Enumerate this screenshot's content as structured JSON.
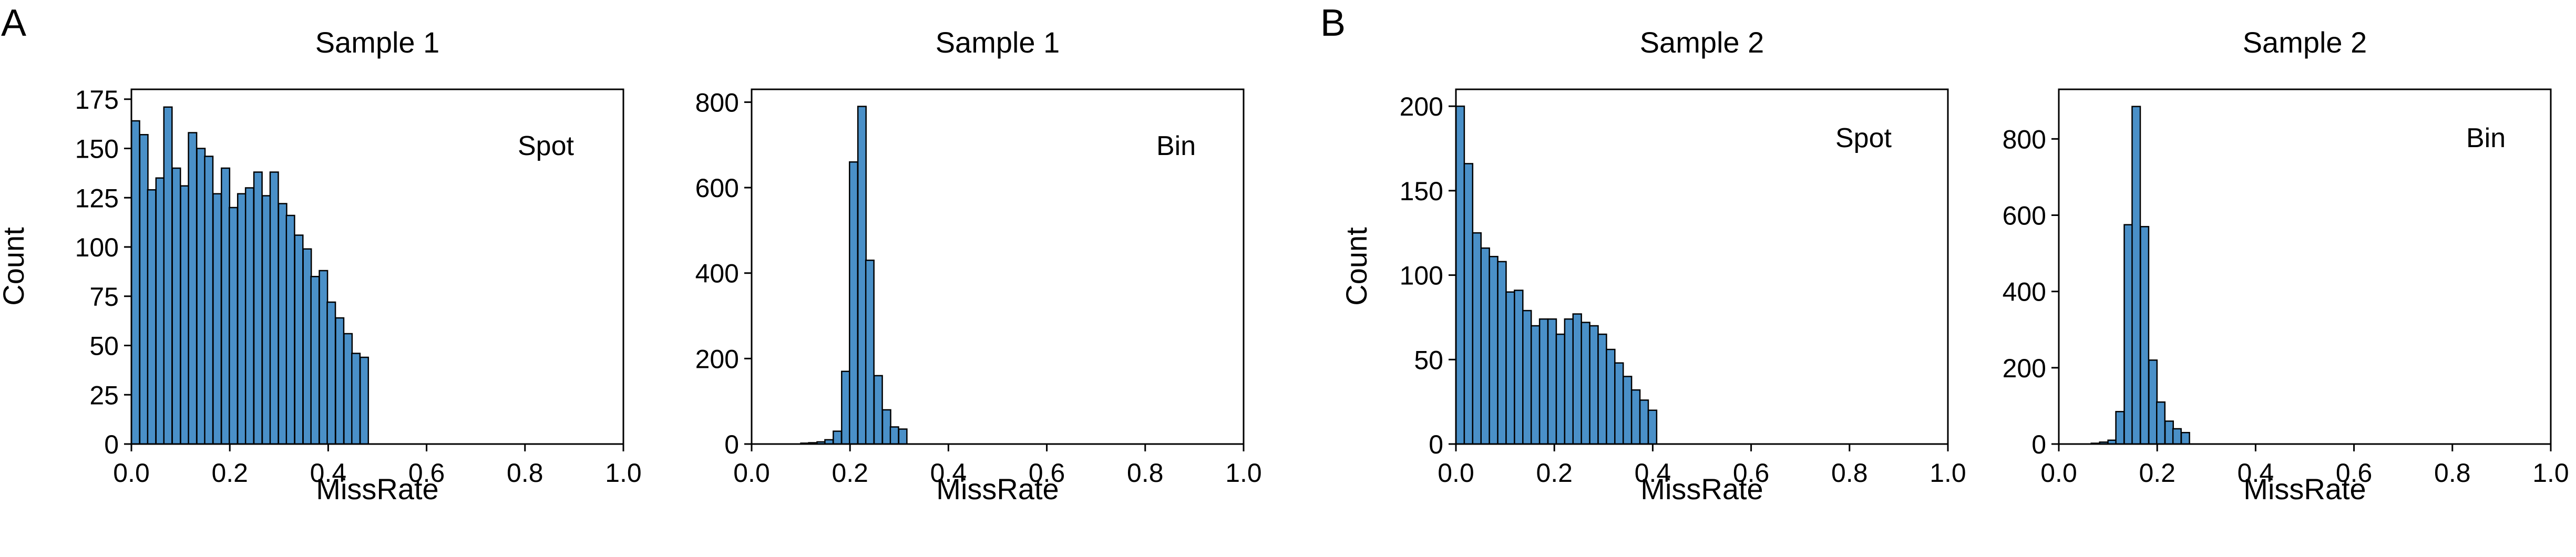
{
  "figure": {
    "panel_letters": [
      "A",
      "B"
    ]
  },
  "chart_data": [
    {
      "type": "bar",
      "panel": "A",
      "title": "Sample 1",
      "annotation": "Spot",
      "xlabel": "MissRate",
      "ylabel": "Count",
      "xlim": [
        0.0,
        1.0
      ],
      "ylim": [
        0,
        180
      ],
      "xticks": [
        "0.0",
        "0.2",
        "0.4",
        "0.6",
        "0.8",
        "1.0"
      ],
      "yticks": [
        "0",
        "25",
        "50",
        "75",
        "100",
        "125",
        "150",
        "175"
      ],
      "bin_width": 0.0166,
      "x": [
        0.0,
        0.017,
        0.033,
        0.05,
        0.066,
        0.083,
        0.1,
        0.116,
        0.133,
        0.149,
        0.166,
        0.183,
        0.199,
        0.216,
        0.232,
        0.249,
        0.266,
        0.282,
        0.299,
        0.315,
        0.332,
        0.349,
        0.365,
        0.382,
        0.398,
        0.415,
        0.432,
        0.448,
        0.465
      ],
      "values": [
        164,
        157,
        129,
        135,
        171,
        140,
        131,
        158,
        150,
        146,
        127,
        140,
        120,
        127,
        130,
        138,
        126,
        138,
        122,
        116,
        106,
        99,
        85,
        88,
        72,
        64,
        56,
        46,
        44
      ]
    },
    {
      "type": "bar",
      "panel": "A",
      "title": "Sample 1",
      "annotation": "Bin",
      "xlabel": "MissRate",
      "ylabel": "",
      "xlim": [
        0.0,
        1.0
      ],
      "ylim": [
        0,
        830
      ],
      "xticks": [
        "0.0",
        "0.2",
        "0.4",
        "0.6",
        "0.8",
        "1.0"
      ],
      "yticks": [
        "0",
        "200",
        "400",
        "600",
        "800"
      ],
      "bin_width": 0.0166,
      "x": [
        0.066,
        0.083,
        0.1,
        0.116,
        0.133,
        0.149,
        0.166,
        0.183,
        0.199,
        0.216,
        0.232,
        0.249,
        0.266,
        0.282,
        0.299,
        0.315
      ],
      "values": [
        0,
        0,
        2,
        3,
        5,
        10,
        30,
        170,
        660,
        790,
        430,
        160,
        80,
        40,
        35,
        0
      ]
    },
    {
      "type": "bar",
      "panel": "B",
      "title": "Sample 2",
      "annotation": "Spot",
      "xlabel": "MissRate",
      "ylabel": "Count",
      "xlim": [
        0.0,
        1.0
      ],
      "ylim": [
        0,
        210
      ],
      "xticks": [
        "0.0",
        "0.2",
        "0.4",
        "0.6",
        "0.8",
        "1.0"
      ],
      "yticks": [
        "0",
        "50",
        "100",
        "150",
        "200"
      ],
      "bin_width": 0.017,
      "x": [
        0.0,
        0.017,
        0.034,
        0.051,
        0.068,
        0.085,
        0.102,
        0.119,
        0.136,
        0.153,
        0.17,
        0.187,
        0.204,
        0.221,
        0.238,
        0.255,
        0.272,
        0.289,
        0.306,
        0.323,
        0.34,
        0.357,
        0.374,
        0.391,
        0.408
      ],
      "values": [
        200,
        166,
        125,
        116,
        111,
        108,
        90,
        91,
        79,
        70,
        74,
        74,
        65,
        74,
        77,
        72,
        70,
        65,
        56,
        48,
        40,
        32,
        26,
        20,
        0
      ]
    },
    {
      "type": "bar",
      "panel": "B",
      "title": "Sample 2",
      "annotation": "Bin",
      "xlabel": "MissRate",
      "ylabel": "",
      "xlim": [
        0.0,
        1.0
      ],
      "ylim": [
        0,
        930
      ],
      "xticks": [
        "0.0",
        "0.2",
        "0.4",
        "0.6",
        "0.8",
        "1.0"
      ],
      "yticks": [
        "0",
        "200",
        "400",
        "600",
        "800"
      ],
      "bin_width": 0.0166,
      "x": [
        0.05,
        0.066,
        0.083,
        0.1,
        0.116,
        0.133,
        0.149,
        0.166,
        0.183,
        0.199,
        0.216,
        0.232,
        0.249,
        0.266
      ],
      "values": [
        0,
        2,
        5,
        10,
        85,
        575,
        885,
        570,
        220,
        110,
        60,
        40,
        30,
        0
      ]
    }
  ],
  "colors": {
    "bar_fill": "#4a90c8",
    "bar_edge": "#000000",
    "axis": "#000000"
  }
}
